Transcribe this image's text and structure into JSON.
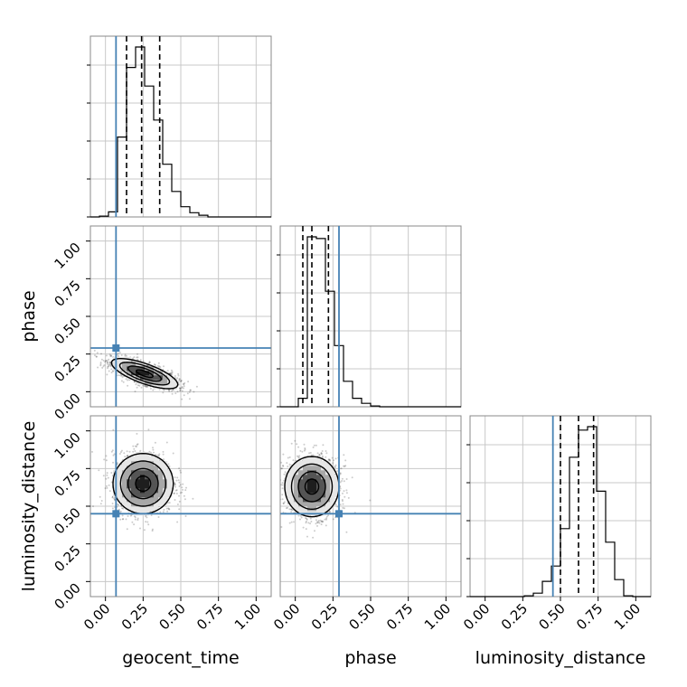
{
  "chart_data": {
    "type": "corner",
    "parameters": [
      "geocent_time",
      "phase",
      "luminosity_distance"
    ],
    "axis_labels": {
      "geocent_time": "geocent_time",
      "phase": "phase",
      "luminosity_distance": "luminosity_distance"
    },
    "range": [
      -0.1,
      1.1
    ],
    "tick_values": [
      0.0,
      0.25,
      0.5,
      0.75,
      1.0
    ],
    "tick_labels": [
      "0.00",
      "0.25",
      "0.50",
      "0.75",
      "1.00"
    ],
    "grid": true,
    "truth_color": "#4682b4",
    "truths": {
      "geocent_time": 0.07,
      "phase": 0.29,
      "luminosity_distance": 0.45
    },
    "quantiles": {
      "geocent_time": [
        0.14,
        0.24,
        0.36
      ],
      "phase": [
        0.05,
        0.11,
        0.22
      ],
      "luminosity_distance": [
        0.5,
        0.62,
        0.72
      ]
    },
    "histograms": {
      "geocent_time": {
        "bin_edges": [
          -0.1,
          -0.04,
          0.02,
          0.08,
          0.14,
          0.2,
          0.26,
          0.32,
          0.38,
          0.44,
          0.5,
          0.56,
          0.62,
          0.68,
          0.74,
          0.8,
          0.86,
          0.92,
          0.98,
          1.04,
          1.1
        ],
        "counts": [
          0,
          0.5,
          3,
          47,
          88,
          100,
          77,
          57,
          31,
          15,
          6,
          2.5,
          1,
          0,
          0,
          0,
          0,
          0,
          0,
          0
        ]
      },
      "phase": {
        "bin_edges": [
          -0.1,
          -0.04,
          0.02,
          0.08,
          0.14,
          0.2,
          0.26,
          0.32,
          0.38,
          0.44,
          0.5,
          0.56,
          0.62,
          0.68,
          0.74,
          0.8,
          0.86,
          0.92,
          0.98,
          1.04,
          1.1
        ],
        "counts": [
          0,
          0,
          5,
          100,
          99,
          68,
          36,
          15,
          5,
          2,
          0.5,
          0,
          0,
          0,
          0,
          0,
          0,
          0,
          0,
          0
        ]
      },
      "luminosity_distance": {
        "bin_edges": [
          -0.1,
          -0.04,
          0.02,
          0.08,
          0.14,
          0.2,
          0.26,
          0.32,
          0.38,
          0.44,
          0.5,
          0.56,
          0.62,
          0.68,
          0.74,
          0.8,
          0.86,
          0.92,
          0.98,
          1.04,
          1.1
        ],
        "counts": [
          0,
          0,
          0,
          0,
          0,
          0,
          0.5,
          2,
          9,
          18,
          40,
          82,
          98,
          100,
          62,
          32,
          10,
          0.5,
          0,
          0
        ]
      }
    },
    "contours": [
      {
        "x": "geocent_time",
        "y": "phase",
        "mean": [
          0.26,
          0.12
        ],
        "sd": [
          0.11,
          0.05
        ],
        "rho": -0.72,
        "levels": [
          0.5,
          1.0,
          1.5,
          2.0
        ],
        "scatter_points": 1500
      },
      {
        "x": "geocent_time",
        "y": "luminosity_distance",
        "mean": [
          0.25,
          0.65
        ],
        "sd": [
          0.1,
          0.1
        ],
        "rho": 0.0,
        "levels": [
          0.5,
          1.0,
          1.5,
          2.0
        ],
        "scatter_points": 1500
      },
      {
        "x": "phase",
        "y": "luminosity_distance",
        "mean": [
          0.11,
          0.63
        ],
        "sd": [
          0.09,
          0.1
        ],
        "rho": 0.0,
        "levels": [
          0.5,
          1.0,
          1.5,
          2.0
        ],
        "scatter_points": 1500
      }
    ]
  }
}
